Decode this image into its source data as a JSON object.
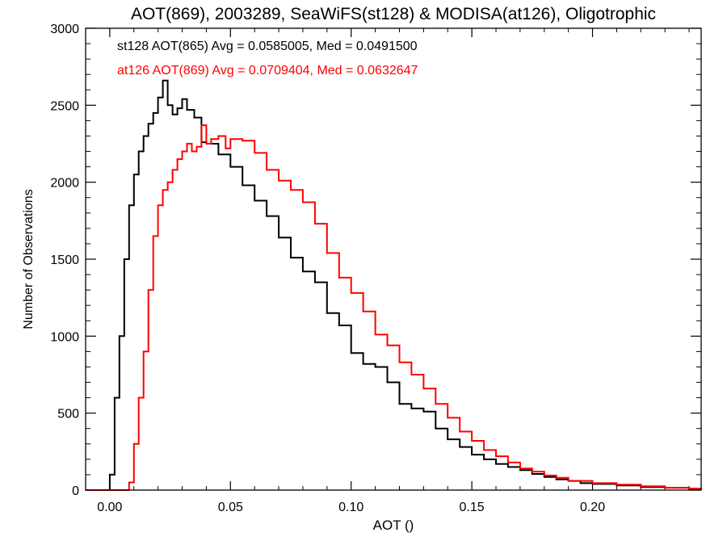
{
  "chart_data": {
    "type": "line",
    "title": "AOT(869), 2003289, SeaWiFS(st128) & MODISA(at126), Oligotrophic",
    "xlabel": "AOT ()",
    "ylabel": "Number of Observations",
    "xlim": [
      -0.01,
      0.245
    ],
    "ylim": [
      0,
      3000
    ],
    "x_ticks": [
      0.0,
      0.05,
      0.1,
      0.15,
      0.2
    ],
    "x_tick_labels": [
      "0.00",
      "0.05",
      "0.10",
      "0.15",
      "0.20"
    ],
    "y_ticks": [
      0,
      500,
      1000,
      1500,
      2000,
      2500,
      3000
    ],
    "y_tick_labels": [
      "0",
      "500",
      "1000",
      "1500",
      "2000",
      "2500",
      "3000"
    ],
    "grid": false,
    "annotations": [
      {
        "text": "st128 AOT(865) Avg = 0.0585005, Med = 0.0491500",
        "color": "#000000"
      },
      {
        "text": "at126 AOT(869) Avg = 0.0709404, Med = 0.0632647",
        "color": "#ff0000"
      }
    ],
    "series": [
      {
        "color": "#000000",
        "x": [
          0.0,
          0.002,
          0.004,
          0.006,
          0.008,
          0.01,
          0.012,
          0.014,
          0.016,
          0.018,
          0.02,
          0.022,
          0.024,
          0.026,
          0.028,
          0.03,
          0.032,
          0.035,
          0.038,
          0.04,
          0.045,
          0.05,
          0.055,
          0.06,
          0.065,
          0.07,
          0.075,
          0.08,
          0.085,
          0.09,
          0.095,
          0.1,
          0.105,
          0.11,
          0.115,
          0.12,
          0.125,
          0.13,
          0.135,
          0.14,
          0.145,
          0.15,
          0.155,
          0.16,
          0.165,
          0.17,
          0.175,
          0.18,
          0.185,
          0.19,
          0.195,
          0.2,
          0.21,
          0.22,
          0.23,
          0.24,
          0.245
        ],
        "y": [
          100,
          600,
          1000,
          1500,
          1850,
          2050,
          2200,
          2300,
          2380,
          2450,
          2550,
          2660,
          2500,
          2440,
          2480,
          2540,
          2470,
          2420,
          2260,
          2250,
          2180,
          2100,
          1980,
          1880,
          1780,
          1640,
          1510,
          1420,
          1350,
          1150,
          1070,
          890,
          820,
          800,
          700,
          560,
          530,
          510,
          400,
          330,
          280,
          230,
          200,
          170,
          150,
          130,
          105,
          85,
          70,
          60,
          45,
          40,
          30,
          20,
          15,
          8,
          5
        ]
      },
      {
        "color": "#ff0000",
        "x": [
          0.008,
          0.01,
          0.012,
          0.014,
          0.016,
          0.018,
          0.02,
          0.022,
          0.024,
          0.026,
          0.028,
          0.03,
          0.032,
          0.034,
          0.036,
          0.038,
          0.04,
          0.042,
          0.045,
          0.048,
          0.05,
          0.055,
          0.06,
          0.065,
          0.07,
          0.075,
          0.08,
          0.085,
          0.09,
          0.095,
          0.1,
          0.105,
          0.11,
          0.115,
          0.12,
          0.125,
          0.13,
          0.135,
          0.14,
          0.145,
          0.15,
          0.155,
          0.16,
          0.165,
          0.17,
          0.175,
          0.18,
          0.185,
          0.19,
          0.2,
          0.21,
          0.22,
          0.23,
          0.24,
          0.245
        ],
        "y": [
          50,
          300,
          600,
          900,
          1300,
          1650,
          1850,
          1950,
          2000,
          2080,
          2150,
          2200,
          2250,
          2200,
          2230,
          2370,
          2250,
          2280,
          2300,
          2220,
          2280,
          2270,
          2190,
          2080,
          2010,
          1950,
          1870,
          1730,
          1540,
          1380,
          1280,
          1160,
          1010,
          940,
          830,
          750,
          660,
          560,
          470,
          380,
          320,
          260,
          220,
          180,
          140,
          120,
          95,
          80,
          60,
          45,
          35,
          25,
          15,
          10,
          5
        ]
      }
    ]
  }
}
